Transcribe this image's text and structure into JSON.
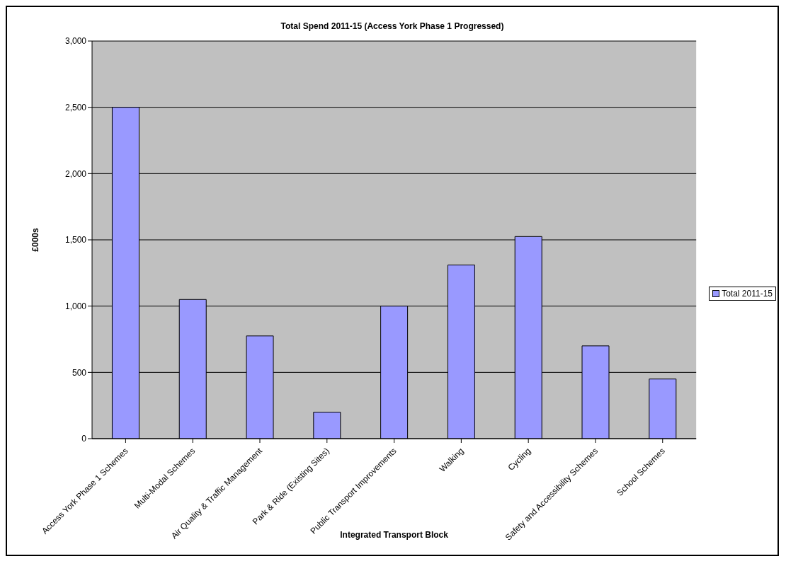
{
  "chart_data": {
    "type": "bar",
    "title": "Total Spend 2011-15 (Access York Phase 1 Progressed)",
    "xlabel": "Integrated Transport Block",
    "ylabel": "£000s",
    "categories": [
      "Access York Phase 1 Schemes",
      "Multi-Modal Schemes",
      "Air Quality & Traffic Management",
      "Park & Ride (Existing Sites)",
      "Public Transport Improvements",
      "Walking",
      "Cycling",
      "Safety and Accessibility Schemes",
      "School Schemes"
    ],
    "series": [
      {
        "name": "Total 2011-15",
        "color": "#9999ff",
        "values": [
          2500,
          1050,
          775,
          200,
          1000,
          1310,
          1525,
          700,
          450
        ]
      }
    ],
    "ylim": [
      0,
      3000
    ],
    "yticks": [
      {
        "value": 0,
        "label": "0"
      },
      {
        "value": 500,
        "label": "500"
      },
      {
        "value": 1000,
        "label": "1,000"
      },
      {
        "value": 1500,
        "label": "1,500"
      },
      {
        "value": 2000,
        "label": "2,000"
      },
      {
        "value": 2500,
        "label": "2,500"
      },
      {
        "value": 3000,
        "label": "3,000"
      }
    ],
    "grid": "y",
    "legend": "right"
  }
}
